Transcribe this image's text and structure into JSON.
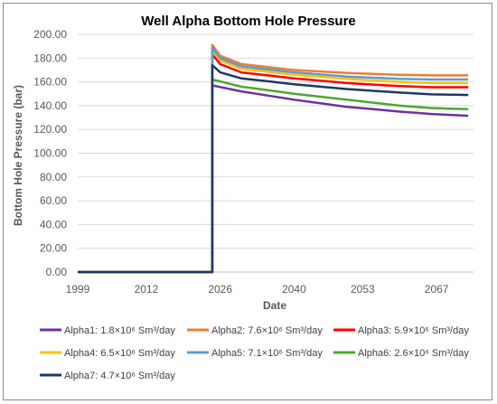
{
  "chart_data": {
    "type": "line",
    "title": "Well Alpha Bottom Hole Pressure",
    "xlabel": "Date",
    "ylabel": "Bottom Hole Pressure (bar)",
    "xlim": [
      1999,
      2074
    ],
    "ylim": [
      0,
      200
    ],
    "x_ticks": [
      "1999",
      "2012",
      "2026",
      "2040",
      "2053",
      "2067"
    ],
    "y_ticks": [
      "0.00",
      "20.00",
      "40.00",
      "60.00",
      "80.00",
      "100.00",
      "120.00",
      "140.00",
      "160.00",
      "180.00",
      "200.00"
    ],
    "grid": "horizontal",
    "legend": "bottom",
    "start_year": 2024.5,
    "series": [
      {
        "name": "Alpha1: 1.8×10⁶ Sm³/day",
        "color": "#7030A0",
        "x": [
          1999,
          2024.5,
          2024.5,
          2030,
          2040,
          2050,
          2060,
          2066,
          2073
        ],
        "y": [
          0,
          0,
          157,
          152,
          145,
          139,
          135,
          133,
          131.5
        ]
      },
      {
        "name": "Alpha2: 7.6×10⁶ Sm³/day",
        "color": "#ED7D31",
        "x": [
          1999,
          2024.5,
          2024.5,
          2026,
          2030,
          2040,
          2050,
          2060,
          2066,
          2073
        ],
        "y": [
          0,
          0,
          191,
          182,
          175,
          170,
          167.5,
          166,
          165.5,
          165.5
        ]
      },
      {
        "name": "Alpha3: 5.9×10⁶ Sm³/day",
        "color": "#FF0000",
        "x": [
          1999,
          2024.5,
          2024.5,
          2026,
          2030,
          2040,
          2050,
          2060,
          2066,
          2073
        ],
        "y": [
          0,
          0,
          183,
          175,
          168,
          163,
          159,
          156.5,
          155.5,
          155.5
        ]
      },
      {
        "name": "Alpha4: 6.5×10⁶ Sm³/day",
        "color": "#FFC000",
        "x": [
          1999,
          2024.5,
          2024.5,
          2026,
          2030,
          2040,
          2050,
          2060,
          2066,
          2073
        ],
        "y": [
          0,
          0,
          186,
          178,
          171,
          166,
          162.5,
          160,
          159,
          159
        ]
      },
      {
        "name": "Alpha5: 7.1×10⁶ Sm³/day",
        "color": "#5B9BD5",
        "x": [
          1999,
          2024.5,
          2024.5,
          2026,
          2030,
          2040,
          2050,
          2060,
          2066,
          2073
        ],
        "y": [
          0,
          0,
          188.5,
          180,
          173,
          168,
          164.5,
          162.5,
          162,
          162
        ]
      },
      {
        "name": "Alpha6: 2.6×10⁶ Sm³/day",
        "color": "#4EA72E",
        "x": [
          1999,
          2024.5,
          2024.5,
          2030,
          2040,
          2050,
          2060,
          2066,
          2073
        ],
        "y": [
          0,
          0,
          162,
          156,
          150,
          145,
          140,
          138,
          137
        ]
      },
      {
        "name": "Alpha7: 4.7×10⁶ Sm³/day",
        "color": "#1F3864",
        "x": [
          1999,
          2024.5,
          2024.5,
          2026,
          2030,
          2040,
          2050,
          2060,
          2066,
          2073
        ],
        "y": [
          0,
          0,
          174,
          168,
          163,
          158,
          154,
          151,
          149.5,
          149
        ]
      }
    ]
  }
}
